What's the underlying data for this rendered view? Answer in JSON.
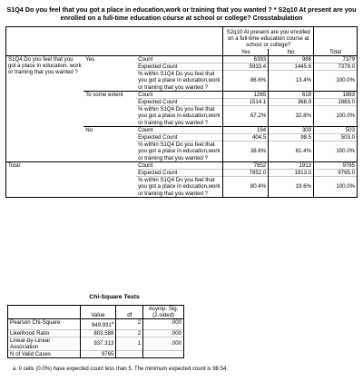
{
  "title": "S1Q4 Do you feel that you got a place in education,work or training that you wanted ? * S2q10 At present are you enrolled on a full-time education course at school or college? Crosstabulation",
  "crosstab": {
    "col_var_label": "S2q10 At present are you enrolled on a full-time education course at school or college?",
    "col_headers": [
      "Yes",
      "No",
      "Total"
    ],
    "row_var_label": "S1Q4 Do you feel that you got a place in education, work or training that you wanted ?",
    "stat_labels": [
      "Count",
      "Expected Count",
      "% within S1Q4 Do you feel that you got a place in education,work or training that you wanted ?"
    ],
    "groups": [
      {
        "label": "Yes",
        "count": [
          "6393",
          "986",
          "7379"
        ],
        "expected": [
          "5933.4",
          "1445.6",
          "7379.0"
        ],
        "percent": [
          "86.6%",
          "13.4%",
          "100.0%"
        ]
      },
      {
        "label": "To some extent",
        "count": [
          "1265",
          "618",
          "1883"
        ],
        "expected": [
          "1514.1",
          "368.9",
          "1883.0"
        ],
        "percent": [
          "67.2%",
          "32.8%",
          "100.0%"
        ]
      },
      {
        "label": "No",
        "count": [
          "194",
          "309",
          "503"
        ],
        "expected": [
          "404.5",
          "98.5",
          "503.0"
        ],
        "percent": [
          "38.6%",
          "61.4%",
          "100.0%"
        ]
      }
    ],
    "total": {
      "label": "Total",
      "count": [
        "7852",
        "1913",
        "9765"
      ],
      "expected": [
        "7852.0",
        "1913.0",
        "9765.0"
      ],
      "percent": [
        "80.4%",
        "19.6%",
        "100.0%"
      ]
    }
  },
  "chi": {
    "title": "Chi-Square Tests",
    "headers": {
      "value": "Value",
      "df": "df",
      "sig": "Asymp. Sig. (2-sided)"
    },
    "rows": [
      {
        "label": "Pearson Chi-Square",
        "value": "949.931",
        "sup": "a",
        "df": "2",
        "sig": ".000"
      },
      {
        "label": "Likelihood Ratio",
        "value": "803.588",
        "df": "2",
        "sig": ".000"
      },
      {
        "label": "Linear-by-Linear Association",
        "value": "937.313",
        "df": "1",
        "sig": ".000"
      },
      {
        "label": "N of Valid Cases",
        "value": "9765",
        "df": "",
        "sig": ""
      }
    ],
    "footnote": "a. 0 cells (0.0%) have expected count less than 5. The minimum expected count is 98.54."
  }
}
